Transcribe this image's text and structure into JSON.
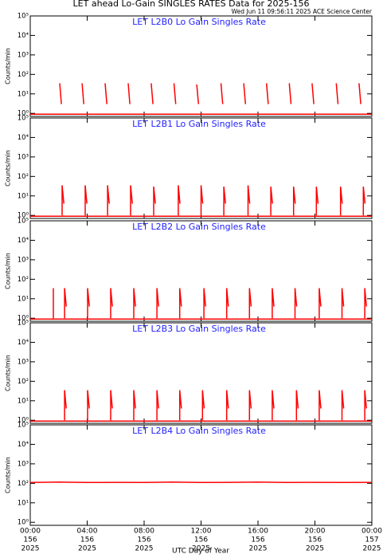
{
  "title": "LET ahead Lo-Gain SINGLES RATES Data for 2025-156",
  "subtitle": "Wed Jun 11 09:56:11 2025 ACE Science Center",
  "xlabel": "UTC Day of Year",
  "x_labels": {
    "times": [
      "00:00",
      "04:00",
      "08:00",
      "12:00",
      "16:00",
      "20:00",
      "00:00"
    ],
    "days": [
      "156",
      "156",
      "156",
      "156",
      "156",
      "156",
      "157"
    ],
    "years": [
      "2025",
      "2025",
      "2025",
      "2025",
      "2025",
      "2025",
      "2025"
    ]
  },
  "chart_data": [
    {
      "type": "line",
      "title": "LET L2B0 Lo Gain Singles Rate",
      "ylabel": "Counts/min",
      "log_y": true,
      "xlim": [
        0,
        24
      ],
      "xticks": [
        0,
        4,
        8,
        12,
        16,
        20,
        24
      ],
      "ylim": [
        0.7,
        100000
      ],
      "yticks": [
        {
          "value": 1,
          "label": "10⁰"
        },
        {
          "value": 10,
          "label": "10¹"
        },
        {
          "value": 100,
          "label": "10²"
        },
        {
          "value": 1000,
          "label": "10³"
        },
        {
          "value": 10000,
          "label": "10⁴"
        },
        {
          "value": 100000,
          "label": "10⁵"
        }
      ],
      "series": [
        {
          "color": "#ff0000",
          "x": [
            2.07,
            2.19,
            2.27,
            3.64,
            3.76,
            3.84,
            5.26,
            5.38,
            5.46,
            6.88,
            7.0,
            7.08,
            8.5,
            8.62,
            8.7,
            10.1,
            10.22,
            10.3,
            11.7,
            11.82,
            11.9,
            13.4,
            13.52,
            13.6,
            15.0,
            15.12,
            15.2,
            16.6,
            16.72,
            16.8,
            18.2,
            18.32,
            18.4,
            19.8,
            19.92,
            20.0,
            21.5,
            21.62,
            21.7,
            23.1,
            23.22
          ],
          "values": [
            35,
            3,
            null,
            35,
            3,
            null,
            35,
            3,
            null,
            35,
            3,
            null,
            35,
            3,
            null,
            35,
            3,
            null,
            30,
            3,
            null,
            35,
            3,
            null,
            35,
            3,
            null,
            35,
            3,
            null,
            35,
            3,
            null,
            35,
            3,
            null,
            35,
            3,
            null,
            35,
            3
          ]
        },
        {
          "color": "#ff0000",
          "x": [
            0,
            24
          ],
          "values": [
            0.9,
            0.9
          ]
        }
      ]
    },
    {
      "type": "line",
      "title": "LET L2B1 Lo Gain Singles Rate",
      "ylabel": "Counts/min",
      "log_y": true,
      "xlim": [
        0,
        24
      ],
      "xticks": [
        0,
        4,
        8,
        12,
        16,
        20,
        24
      ],
      "ylim": [
        0.7,
        100000
      ],
      "yticks": [
        {
          "value": 1,
          "label": "10⁰"
        },
        {
          "value": 10,
          "label": "10¹"
        },
        {
          "value": 100,
          "label": "10²"
        },
        {
          "value": 1000,
          "label": "10³"
        },
        {
          "value": 10000,
          "label": "10⁴"
        },
        {
          "value": 100000,
          "label": "10⁵"
        }
      ],
      "series": [
        {
          "color": "#ff0000",
          "x": [
            2.24,
            2.24,
            2.36,
            2.44,
            3.86,
            3.86,
            3.98,
            4.06,
            5.43,
            5.43,
            5.55,
            5.63,
            7.05,
            7.05,
            7.17,
            7.25,
            8.67,
            8.67,
            8.79,
            8.87,
            10.4,
            10.4,
            10.52,
            10.6,
            12.0,
            12.0,
            12.12,
            12.2,
            13.6,
            13.6,
            13.72,
            13.8,
            15.3,
            15.3,
            15.42,
            15.5,
            16.9,
            16.9,
            17.02,
            17.1,
            18.5,
            18.5,
            18.62,
            18.7,
            20.1,
            20.1,
            20.22,
            20.3,
            21.8,
            21.8,
            21.92,
            22.0,
            23.4,
            23.4,
            23.52
          ],
          "values": [
            1,
            35,
            4,
            null,
            1,
            35,
            4,
            null,
            1,
            35,
            4,
            null,
            1,
            35,
            4,
            null,
            1,
            30,
            4,
            null,
            1,
            35,
            4,
            null,
            1,
            35,
            4,
            null,
            1,
            30,
            4,
            null,
            1,
            35,
            4,
            null,
            1,
            30,
            4,
            null,
            1,
            30,
            4,
            null,
            1,
            30,
            4,
            null,
            1,
            30,
            4,
            null,
            1,
            30,
            4
          ]
        },
        {
          "color": "#ff0000",
          "x": [
            0,
            24
          ],
          "values": [
            0.9,
            0.9
          ]
        }
      ]
    },
    {
      "type": "line",
      "title": "LET L2B2 Lo Gain Singles Rate",
      "ylabel": "Counts/min",
      "log_y": true,
      "xlim": [
        0,
        24
      ],
      "xticks": [
        0,
        4,
        8,
        12,
        16,
        20,
        24
      ],
      "ylim": [
        0.7,
        100000
      ],
      "yticks": [
        {
          "value": 1,
          "label": "10⁰"
        },
        {
          "value": 10,
          "label": "10¹"
        },
        {
          "value": 100,
          "label": "10²"
        },
        {
          "value": 1000,
          "label": "10³"
        },
        {
          "value": 10000,
          "label": "10⁴"
        },
        {
          "value": 100000,
          "label": "10⁵"
        }
      ],
      "series": [
        {
          "color": "#ff0000",
          "x": [
            1.62,
            1.62,
            1.7,
            2.41,
            2.41,
            2.53,
            2.61,
            4.03,
            4.03,
            4.15,
            4.23,
            5.65,
            5.65,
            5.77,
            5.85,
            7.27,
            7.27,
            7.39,
            7.47,
            8.9,
            8.9,
            9.02,
            9.1,
            10.5,
            10.5,
            10.62,
            10.7,
            12.2,
            12.2,
            12.32,
            12.4,
            13.8,
            13.8,
            13.92,
            14.0,
            15.4,
            15.4,
            15.52,
            15.6,
            17.0,
            17.0,
            17.12,
            17.2,
            18.6,
            18.6,
            18.72,
            18.8,
            20.3,
            20.3,
            20.42,
            20.5,
            21.9,
            21.9,
            22.02,
            22.1,
            23.5,
            23.5,
            23.62
          ],
          "values": [
            1,
            35,
            null,
            1,
            35,
            4,
            null,
            1,
            35,
            4,
            null,
            1,
            35,
            4,
            null,
            1,
            35,
            4,
            null,
            1,
            35,
            4,
            null,
            1,
            35,
            4,
            null,
            1,
            35,
            4,
            null,
            1,
            35,
            4,
            null,
            1,
            35,
            4,
            null,
            1,
            35,
            4,
            null,
            1,
            35,
            4,
            null,
            1,
            35,
            4,
            null,
            1,
            35,
            4,
            null,
            1,
            35,
            4
          ]
        },
        {
          "color": "#ff0000",
          "x": [
            0,
            24
          ],
          "values": [
            0.9,
            0.9
          ]
        }
      ]
    },
    {
      "type": "line",
      "title": "LET L2B3 Lo Gain Singles Rate",
      "ylabel": "Counts/min",
      "log_y": true,
      "xlim": [
        0,
        24
      ],
      "xticks": [
        0,
        4,
        8,
        12,
        16,
        20,
        24
      ],
      "ylim": [
        0.7,
        100000
      ],
      "yticks": [
        {
          "value": 1,
          "label": "10⁰"
        },
        {
          "value": 10,
          "label": "10¹"
        },
        {
          "value": 100,
          "label": "10²"
        },
        {
          "value": 1000,
          "label": "10³"
        },
        {
          "value": 10000,
          "label": "10⁴"
        },
        {
          "value": 100000,
          "label": "10⁵"
        }
      ],
      "series": [
        {
          "color": "#ff0000",
          "x": [
            2.41,
            2.41,
            2.53,
            2.61,
            4.03,
            4.03,
            4.15,
            4.23,
            5.65,
            5.65,
            5.77,
            5.85,
            7.27,
            7.27,
            7.39,
            7.47,
            8.9,
            8.9,
            9.02,
            9.1,
            10.5,
            10.5,
            10.62,
            10.7,
            12.1,
            12.1,
            12.22,
            12.3,
            13.8,
            13.8,
            13.92,
            14.0,
            15.4,
            15.4,
            15.52,
            15.6,
            17.0,
            17.0,
            17.12,
            17.2,
            18.7,
            18.7,
            18.82,
            18.9,
            20.3,
            20.3,
            20.42,
            20.5,
            21.9,
            21.9,
            22.02,
            22.1,
            23.5,
            23.5,
            23.62
          ],
          "values": [
            1,
            35,
            4,
            null,
            1,
            35,
            4,
            null,
            1,
            35,
            4,
            null,
            1,
            35,
            4,
            null,
            1,
            35,
            4,
            null,
            1,
            35,
            4,
            null,
            1,
            35,
            4,
            null,
            1,
            35,
            4,
            null,
            1,
            35,
            4,
            null,
            1,
            35,
            4,
            null,
            1,
            35,
            4,
            null,
            1,
            35,
            4,
            null,
            1,
            35,
            4,
            null,
            1,
            35,
            4
          ]
        },
        {
          "color": "#ff0000",
          "x": [
            0,
            24
          ],
          "values": [
            0.9,
            0.9
          ]
        }
      ]
    },
    {
      "type": "line",
      "title": "LET L2B4 Lo Gain Singles Rate",
      "ylabel": "Counts/min",
      "log_y": true,
      "xlim": [
        0,
        24
      ],
      "xticks": [
        0,
        4,
        8,
        12,
        16,
        20,
        24
      ],
      "ylim": [
        0.7,
        100000
      ],
      "yticks": [
        {
          "value": 1,
          "label": "10⁰"
        },
        {
          "value": 10,
          "label": "10¹"
        },
        {
          "value": 100,
          "label": "10²"
        },
        {
          "value": 1000,
          "label": "10³"
        },
        {
          "value": 10000,
          "label": "10⁴"
        },
        {
          "value": 100000,
          "label": "10⁵"
        }
      ],
      "series": [
        {
          "color": "#ff0000",
          "x": [
            0,
            2,
            4,
            6,
            8,
            10,
            12,
            14,
            16,
            18,
            20,
            22,
            24
          ],
          "values": [
            110,
            115,
            110,
            112,
            110,
            115,
            110,
            112,
            115,
            110,
            112,
            110,
            112
          ]
        }
      ]
    }
  ]
}
